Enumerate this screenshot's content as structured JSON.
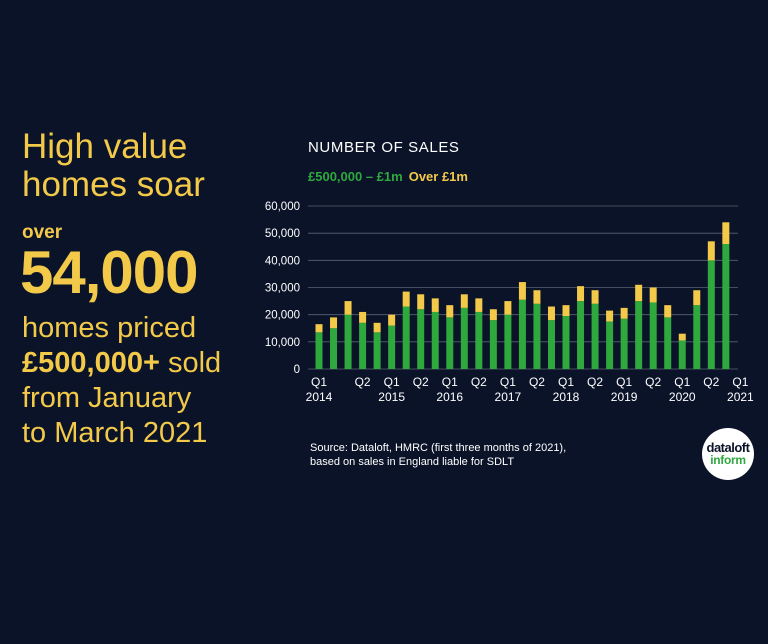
{
  "headline": {
    "line1": "High value",
    "line2": "homes soar"
  },
  "over_label": "over",
  "big_number": "54,000",
  "subtext": {
    "line1": "homes priced",
    "price": "£500,000+",
    "sold": " sold",
    "line3": "from January",
    "line4": "to March 2021"
  },
  "source": {
    "line1": "Source: Dataloft, HMRC (first three months of 2021),",
    "line2": "based on sales in England liable for SDLT"
  },
  "logo": {
    "line1": "dataloft",
    "line2": "inform"
  },
  "colors": {
    "background": "#0a1328",
    "accent": "#f3c94a",
    "green": "#2fa83e",
    "text": "#ffffff"
  },
  "chart_data": {
    "type": "bar",
    "stacked": true,
    "title": "NUMBER OF SALES",
    "xlabel": "",
    "ylabel": "",
    "ylim": [
      0,
      60000
    ],
    "yticks": [
      0,
      10000,
      20000,
      30000,
      40000,
      50000,
      60000
    ],
    "ytick_labels": [
      "0",
      "10,000",
      "20,000",
      "30,000",
      "40,000",
      "50,000",
      "60,000"
    ],
    "grid": true,
    "legend": [
      "£500,000 – £1m",
      "Over £1m"
    ],
    "legend_position": "top-left",
    "x_labels": [
      {
        "text": "Q1",
        "year": "2014",
        "index": 0
      },
      {
        "text": "Q2",
        "year": "",
        "index": 3
      },
      {
        "text": "Q1",
        "year": "2015",
        "index": 5
      },
      {
        "text": "Q2",
        "year": "",
        "index": 7
      },
      {
        "text": "Q1",
        "year": "2016",
        "index": 9
      },
      {
        "text": "Q2",
        "year": "",
        "index": 11
      },
      {
        "text": "Q1",
        "year": "2017",
        "index": 13
      },
      {
        "text": "Q2",
        "year": "",
        "index": 15
      },
      {
        "text": "Q1",
        "year": "2018",
        "index": 17
      },
      {
        "text": "Q2",
        "year": "",
        "index": 19
      },
      {
        "text": "Q1",
        "year": "2019",
        "index": 21
      },
      {
        "text": "Q2",
        "year": "",
        "index": 23
      },
      {
        "text": "Q1",
        "year": "2020",
        "index": 25
      },
      {
        "text": "Q2",
        "year": "",
        "index": 27
      },
      {
        "text": "Q1",
        "year": "2021",
        "index": 29
      }
    ],
    "series": [
      {
        "name": "£500,000 – £1m",
        "color": "#2fa83e",
        "values": [
          13500,
          15000,
          20000,
          17000,
          13500,
          16000,
          23000,
          22000,
          21000,
          19000,
          22500,
          21000,
          18000,
          20000,
          25500,
          24000,
          18000,
          19500,
          25000,
          24000,
          17500,
          18500,
          25000,
          24500,
          19000,
          10500,
          23500,
          40000,
          46000
        ]
      },
      {
        "name": "Over £1m",
        "color": "#f3c94a",
        "values": [
          3000,
          4000,
          5000,
          4000,
          3500,
          4000,
          5500,
          5500,
          5000,
          4500,
          5000,
          5000,
          4000,
          5000,
          6500,
          5000,
          5000,
          4000,
          5500,
          5000,
          4000,
          4000,
          6000,
          5500,
          4500,
          2500,
          5500,
          7000,
          8000
        ]
      }
    ]
  }
}
